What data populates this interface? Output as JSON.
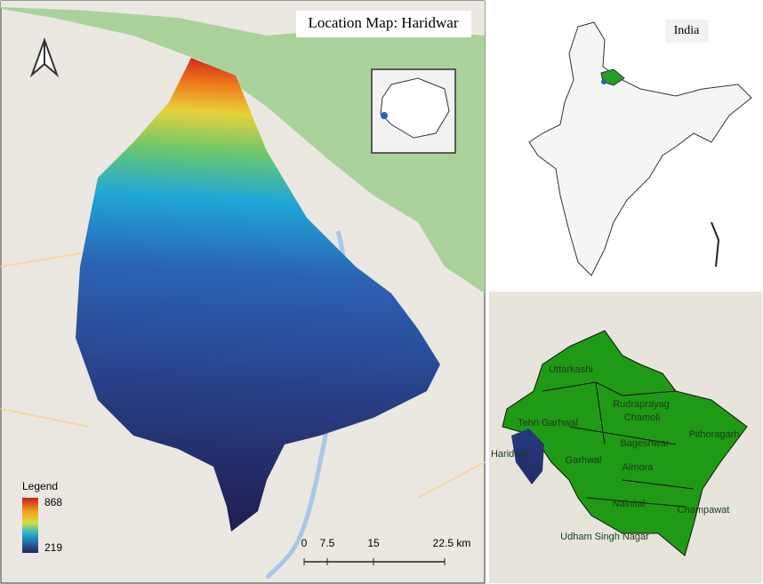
{
  "main_map": {
    "title": "Location Map: Haridwar",
    "legend": {
      "title": "Legend",
      "max": 868,
      "min": 219
    },
    "scale_bar": [
      "0",
      "7.5",
      "15",
      "22.5 km"
    ]
  },
  "india_map": {
    "label": "India"
  },
  "district_map": {
    "labels": [
      "Uttarkashi",
      "Rudraprayag",
      "Tehri Garhwal",
      "Chamoli",
      "Bageshwar",
      "Pithoragarh",
      "Haridwar",
      "Garhwal",
      "Almora",
      "Nainital",
      "Champawat",
      "Udham Singh Nagar"
    ]
  }
}
